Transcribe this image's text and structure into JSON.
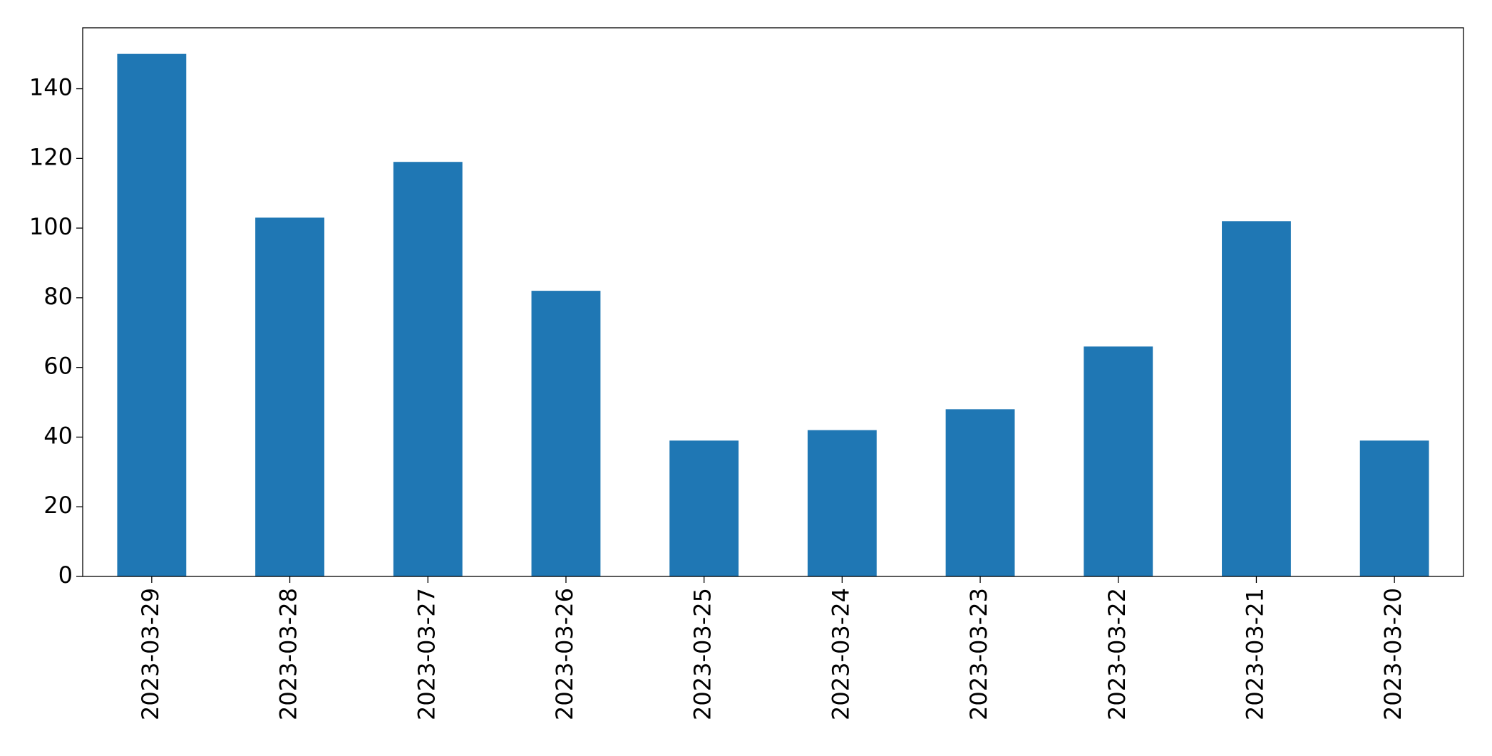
{
  "chart_data": {
    "type": "bar",
    "categories": [
      "2023-03-29",
      "2023-03-28",
      "2023-03-27",
      "2023-03-26",
      "2023-03-25",
      "2023-03-24",
      "2023-03-23",
      "2023-03-22",
      "2023-03-21",
      "2023-03-20"
    ],
    "values": [
      150,
      103,
      119,
      82,
      39,
      42,
      48,
      66,
      102,
      39
    ],
    "color": "#1f77b4",
    "ylim": [
      0,
      157.5
    ],
    "yticks": [
      0,
      20,
      40,
      60,
      80,
      100,
      120,
      140
    ],
    "grid": false
  }
}
